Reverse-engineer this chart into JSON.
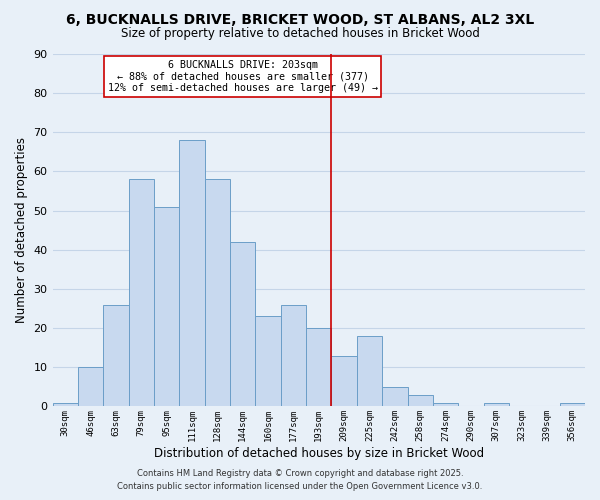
{
  "title": "6, BUCKNALLS DRIVE, BRICKET WOOD, ST ALBANS, AL2 3XL",
  "subtitle": "Size of property relative to detached houses in Bricket Wood",
  "xlabel": "Distribution of detached houses by size in Bricket Wood",
  "ylabel": "Number of detached properties",
  "bins": [
    "30sqm",
    "46sqm",
    "63sqm",
    "79sqm",
    "95sqm",
    "111sqm",
    "128sqm",
    "144sqm",
    "160sqm",
    "177sqm",
    "193sqm",
    "209sqm",
    "225sqm",
    "242sqm",
    "258sqm",
    "274sqm",
    "290sqm",
    "307sqm",
    "323sqm",
    "339sqm",
    "356sqm"
  ],
  "heights": [
    1,
    10,
    26,
    58,
    51,
    68,
    58,
    42,
    23,
    26,
    20,
    13,
    18,
    5,
    3,
    1,
    0,
    1,
    0,
    0,
    1
  ],
  "bar_color": "#c8d9ef",
  "bar_edge_color": "#6b9ec8",
  "grid_color": "#c5d5e8",
  "background_color": "#e8f0f8",
  "vline_color": "#cc0000",
  "vline_index": 10.5,
  "annotation_title": "6 BUCKNALLS DRIVE: 203sqm",
  "annotation_line1": "← 88% of detached houses are smaller (377)",
  "annotation_line2": "12% of semi-detached houses are larger (49) →",
  "ylim": [
    0,
    90
  ],
  "yticks": [
    0,
    10,
    20,
    30,
    40,
    50,
    60,
    70,
    80,
    90
  ],
  "footnote1": "Contains HM Land Registry data © Crown copyright and database right 2025.",
  "footnote2": "Contains public sector information licensed under the Open Government Licence v3.0."
}
